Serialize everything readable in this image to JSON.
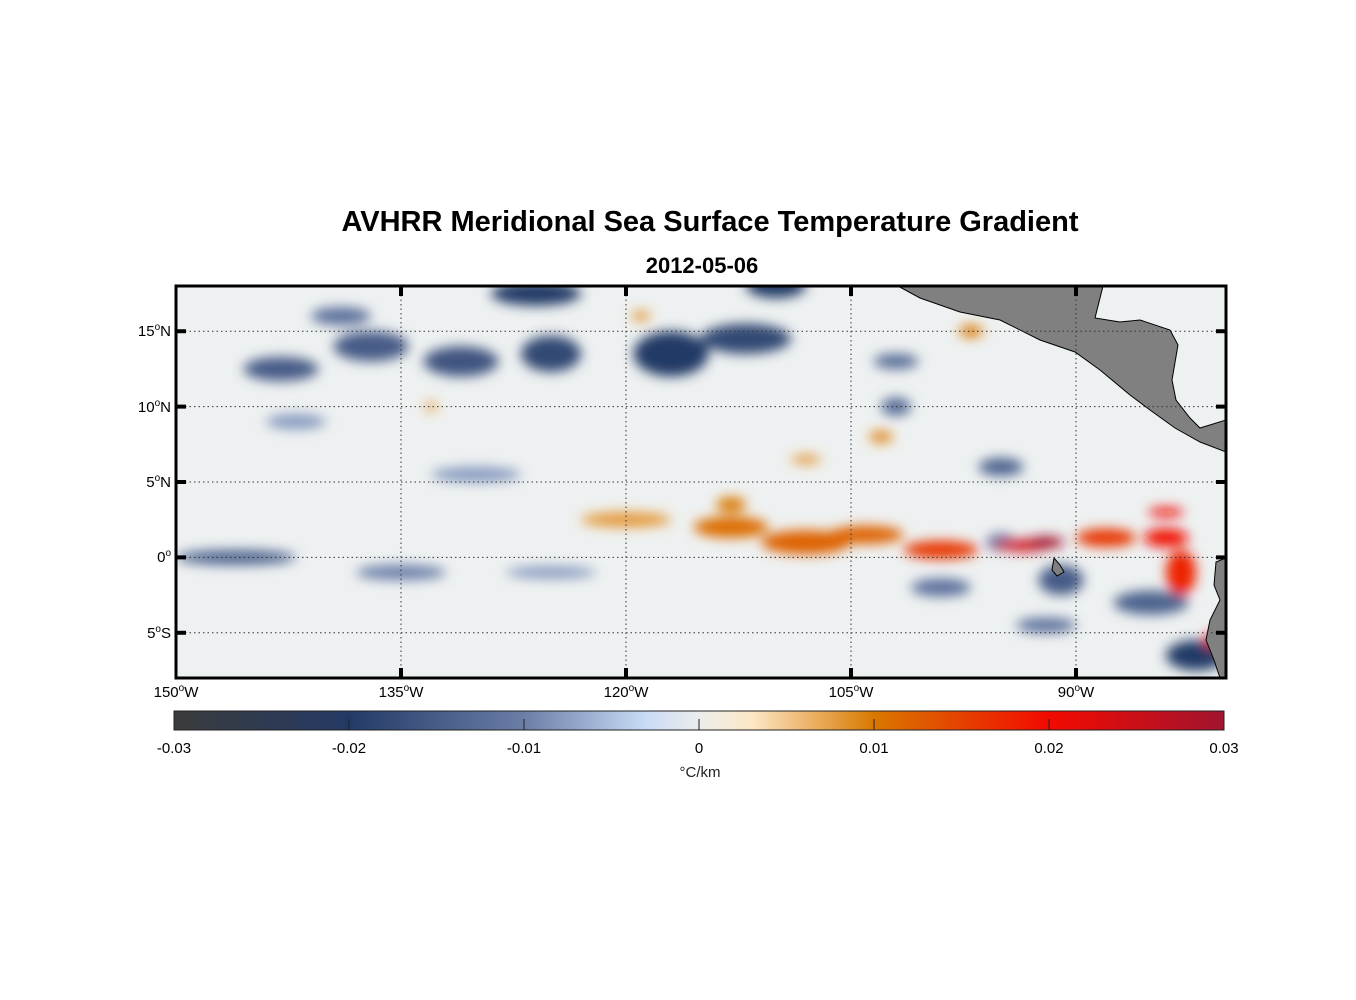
{
  "chart_data": {
    "type": "heatmap",
    "title": "AVHRR Meridional Sea Surface Temperature Gradient",
    "subtitle": "2012-05-06",
    "lon_range": [
      -150,
      -80
    ],
    "lat_range": [
      -8,
      18
    ],
    "lat_ticks": [
      {
        "value": 15,
        "num": "15",
        "hemi": "N"
      },
      {
        "value": 10,
        "num": "10",
        "hemi": "N"
      },
      {
        "value": 5,
        "num": "5",
        "hemi": "N"
      },
      {
        "value": 0,
        "num": "0",
        "hemi": ""
      },
      {
        "value": -5,
        "num": "5",
        "hemi": "S"
      }
    ],
    "lon_ticks": [
      {
        "value": -150,
        "num": "150",
        "hemi": "W"
      },
      {
        "value": -135,
        "num": "135",
        "hemi": "W"
      },
      {
        "value": -120,
        "num": "120",
        "hemi": "W"
      },
      {
        "value": -105,
        "num": "105",
        "hemi": "W"
      },
      {
        "value": -90,
        "num": "90",
        "hemi": "W"
      }
    ],
    "degree_symbol": "o",
    "grid": true,
    "colorbar": {
      "range": [
        -0.03,
        0.03
      ],
      "ticks": [
        "-0.03",
        "-0.02",
        "-0.01",
        "0",
        "0.01",
        "0.02",
        "0.03"
      ],
      "tick_values": [
        -0.03,
        -0.02,
        -0.01,
        0,
        0.01,
        0.02,
        0.03
      ],
      "label": "°C/km",
      "placement": "bottom",
      "colormap": [
        {
          "v": -0.03,
          "c": "#3b3b3b"
        },
        {
          "v": -0.02,
          "c": "#243a66"
        },
        {
          "v": -0.01,
          "c": "#6a7ea8"
        },
        {
          "v": -0.003,
          "c": "#c9dcf5"
        },
        {
          "v": 0,
          "c": "#ececec"
        },
        {
          "v": 0.003,
          "c": "#fde7c6"
        },
        {
          "v": 0.01,
          "c": "#d97800"
        },
        {
          "v": 0.02,
          "c": "#f20a00"
        },
        {
          "v": 0.03,
          "c": "#a1142f"
        }
      ]
    },
    "land_color": "#808080",
    "features": [
      {
        "lon": -137,
        "lat": 14,
        "rx": 2.5,
        "ry": 1,
        "v": -0.015
      },
      {
        "lon": -143,
        "lat": 12.5,
        "rx": 2.5,
        "ry": 0.8,
        "v": -0.015
      },
      {
        "lon": -131,
        "lat": 13,
        "rx": 2.5,
        "ry": 1,
        "v": -0.016
      },
      {
        "lon": -125,
        "lat": 13.5,
        "rx": 2,
        "ry": 1.2,
        "v": -0.018
      },
      {
        "lon": -126,
        "lat": 17.5,
        "rx": 3,
        "ry": 0.8,
        "v": -0.02
      },
      {
        "lon": -117,
        "lat": 13.5,
        "rx": 2.5,
        "ry": 1.5,
        "v": -0.02
      },
      {
        "lon": -112,
        "lat": 14.5,
        "rx": 3,
        "ry": 1,
        "v": -0.018
      },
      {
        "lon": -110,
        "lat": 18,
        "rx": 2,
        "ry": 0.8,
        "v": -0.02
      },
      {
        "lon": -102,
        "lat": 13,
        "rx": 1.5,
        "ry": 0.5,
        "v": -0.013
      },
      {
        "lon": -139,
        "lat": 16,
        "rx": 2,
        "ry": 0.6,
        "v": -0.012
      },
      {
        "lon": -102,
        "lat": 10,
        "rx": 1,
        "ry": 0.6,
        "v": -0.013
      },
      {
        "lon": -95,
        "lat": 6,
        "rx": 1.5,
        "ry": 0.6,
        "v": -0.014
      },
      {
        "lon": -95,
        "lat": 1,
        "rx": 1,
        "ry": 0.6,
        "v": -0.01
      },
      {
        "lon": -146,
        "lat": 0,
        "rx": 4,
        "ry": 0.5,
        "v": -0.014
      },
      {
        "lon": -135,
        "lat": -1,
        "rx": 3,
        "ry": 0.5,
        "v": -0.01
      },
      {
        "lon": -125,
        "lat": -1,
        "rx": 3,
        "ry": 0.4,
        "v": -0.008
      },
      {
        "lon": -99,
        "lat": -2,
        "rx": 2,
        "ry": 0.6,
        "v": -0.012
      },
      {
        "lon": -91,
        "lat": -1.5,
        "rx": 1.5,
        "ry": 1,
        "v": -0.015
      },
      {
        "lon": -85,
        "lat": -3,
        "rx": 2.5,
        "ry": 0.8,
        "v": -0.014
      },
      {
        "lon": -82,
        "lat": -6.5,
        "rx": 2,
        "ry": 1,
        "v": -0.02
      },
      {
        "lon": -92,
        "lat": -4.5,
        "rx": 2,
        "ry": 0.5,
        "v": -0.012
      },
      {
        "lon": -130,
        "lat": 5.5,
        "rx": 3,
        "ry": 0.5,
        "v": -0.008
      },
      {
        "lon": -142,
        "lat": 9,
        "rx": 2,
        "ry": 0.5,
        "v": -0.008
      },
      {
        "lon": -120,
        "lat": 2.5,
        "rx": 3,
        "ry": 0.5,
        "v": 0.008
      },
      {
        "lon": -113,
        "lat": 2,
        "rx": 2.5,
        "ry": 0.7,
        "v": 0.011
      },
      {
        "lon": -108,
        "lat": 1,
        "rx": 3,
        "ry": 0.8,
        "v": 0.012
      },
      {
        "lon": -104,
        "lat": 1.5,
        "rx": 2.5,
        "ry": 0.6,
        "v": 0.012
      },
      {
        "lon": -99,
        "lat": 0.5,
        "rx": 2.5,
        "ry": 0.6,
        "v": 0.016
      },
      {
        "lon": -93.5,
        "lat": 0.8,
        "rx": 2,
        "ry": 0.4,
        "v": 0.024
      },
      {
        "lon": -92,
        "lat": 1,
        "rx": 1.2,
        "ry": 0.4,
        "v": 0.03
      },
      {
        "lon": -88,
        "lat": 1.3,
        "rx": 2,
        "ry": 0.6,
        "v": 0.016
      },
      {
        "lon": -84,
        "lat": 1.3,
        "rx": 1.5,
        "ry": 0.6,
        "v": 0.02
      },
      {
        "lon": -83,
        "lat": -1,
        "rx": 1,
        "ry": 1.5,
        "v": 0.018
      },
      {
        "lon": -84,
        "lat": 3,
        "rx": 1.2,
        "ry": 0.3,
        "v": 0.02
      },
      {
        "lon": -113,
        "lat": 3.5,
        "rx": 1,
        "ry": 0.5,
        "v": 0.01
      },
      {
        "lon": -97,
        "lat": 15,
        "rx": 0.8,
        "ry": 0.4,
        "v": 0.01
      },
      {
        "lon": -103,
        "lat": 8,
        "rx": 0.8,
        "ry": 0.4,
        "v": 0.009
      },
      {
        "lon": -108,
        "lat": 6.5,
        "rx": 1,
        "ry": 0.3,
        "v": 0.008
      },
      {
        "lon": -119,
        "lat": 16,
        "rx": 0.6,
        "ry": 0.3,
        "v": 0.009
      },
      {
        "lon": -133,
        "lat": 10,
        "rx": 0.4,
        "ry": 0.3,
        "v": 0.008
      },
      {
        "lon": -81,
        "lat": -5.5,
        "rx": 0.4,
        "ry": 0.5,
        "v": 0.02
      }
    ]
  }
}
